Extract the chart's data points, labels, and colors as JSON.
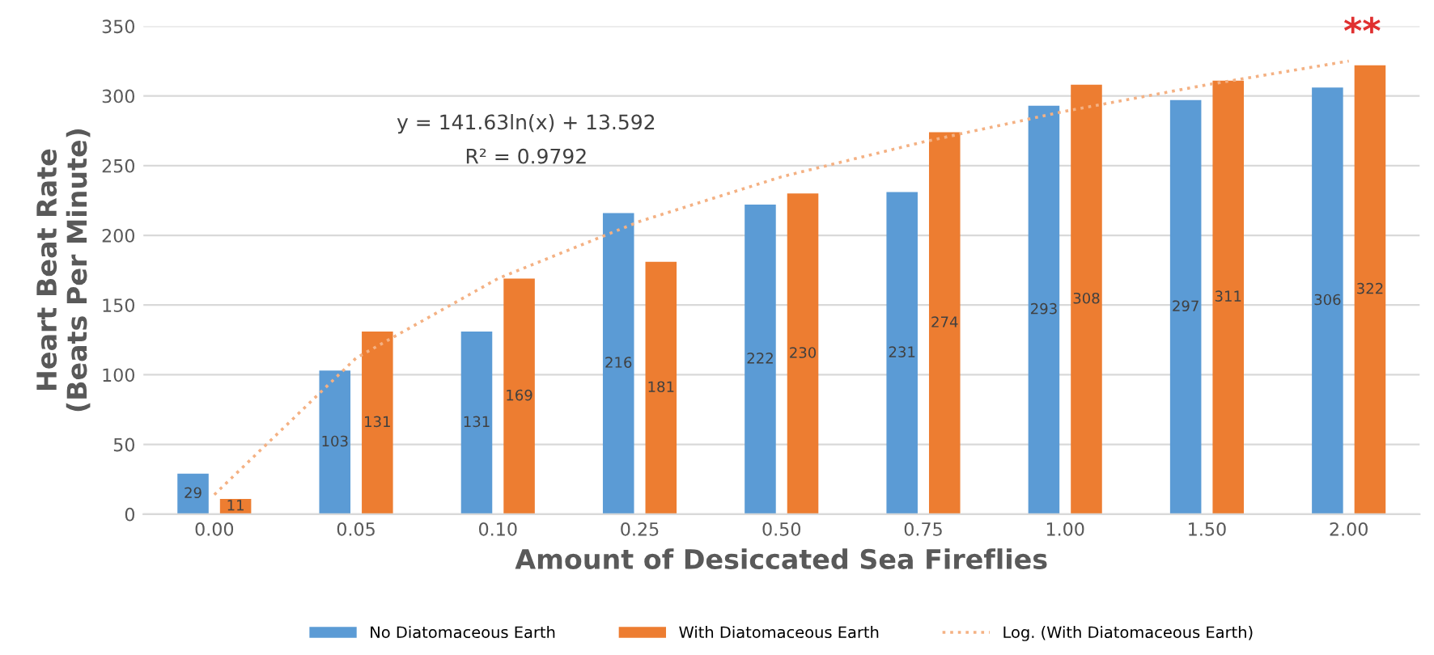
{
  "chart_data": {
    "type": "bar",
    "xlabel": "Amount of Desiccated Sea Fireflies",
    "ylabel": "Heart Beat Rate\n(Beats Per Minute)",
    "categories": [
      "0.00",
      "0.05",
      "0.10",
      "0.25",
      "0.50",
      "0.75",
      "1.00",
      "1.50",
      "2.00"
    ],
    "series": [
      {
        "name": "No Diatomaceous Earth",
        "color": "#5b9bd5",
        "values": [
          29,
          103,
          131,
          216,
          222,
          231,
          293,
          297,
          306
        ],
        "value_labels": [
          "29",
          "103",
          "131",
          "216",
          "222",
          "231",
          "293",
          "297",
          "306"
        ]
      },
      {
        "name": "With Diatomaceous Earth",
        "color": "#ed7d31",
        "values": [
          11,
          131,
          169,
          181,
          230,
          274,
          308,
          311,
          322
        ],
        "value_labels": [
          "11",
          "131",
          "169",
          "181",
          "230",
          "274",
          "308",
          "311",
          "322"
        ]
      },
      {
        "name": "Log. (With Diatomaceous Earth)",
        "type": "line",
        "line_style": "dotted",
        "color": "#f4b183",
        "values": [
          14,
          112,
          169,
          210,
          242,
          267,
          289,
          308,
          325
        ]
      }
    ],
    "ylim": [
      0,
      350
    ],
    "yticks": [
      0,
      50,
      100,
      150,
      200,
      250,
      300,
      350
    ],
    "grid": "y",
    "legend": "bottom",
    "annotations": [
      "y = 141.63ln(x) + 13.592",
      "R² = 0.9792",
      "**"
    ]
  }
}
